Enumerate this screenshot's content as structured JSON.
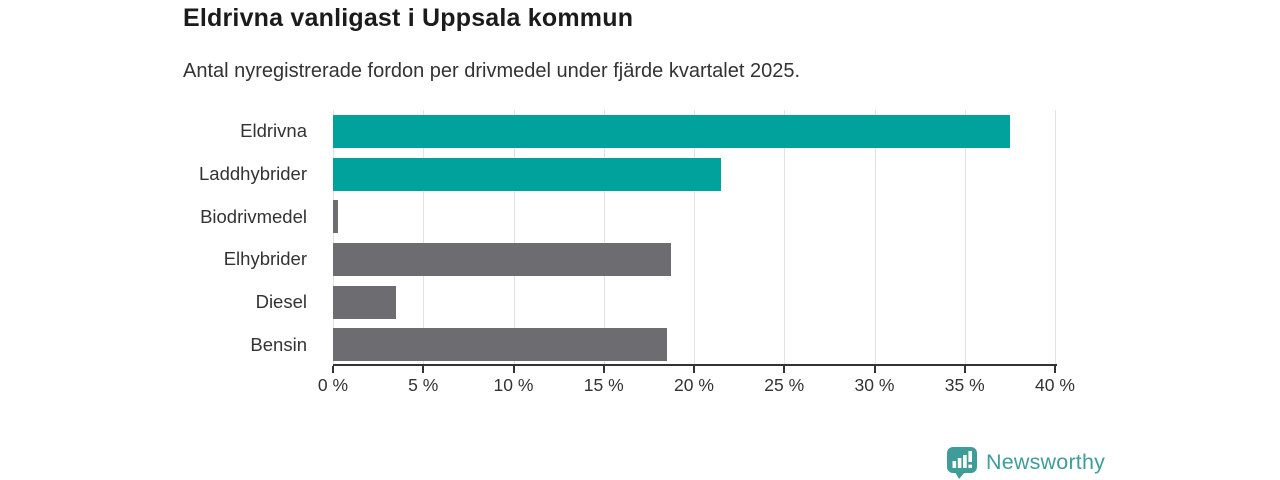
{
  "title": "Eldrivna vanligast i Uppsala kommun",
  "subtitle": "Antal nyregistrerade fordon per drivmedel under fjärde kvartalet 2025.",
  "chart_data": {
    "type": "bar",
    "orientation": "horizontal",
    "title": "Eldrivna vanligast i Uppsala kommun",
    "subtitle": "Antal nyregistrerade fordon per drivmedel under fjärde kvartalet 2025.",
    "categories": [
      "Eldrivna",
      "Laddhybrider",
      "Biodrivmedel",
      "Elhybrider",
      "Diesel",
      "Bensin"
    ],
    "values": [
      37.5,
      21.5,
      0.3,
      18.7,
      3.5,
      18.5
    ],
    "unit": "%",
    "bar_colors": [
      "#00a29b",
      "#00a29b",
      "#6d6d71",
      "#6d6d71",
      "#6d6d71",
      "#6d6d71"
    ],
    "highlight_color": "#00a29b",
    "default_color": "#6d6d71",
    "xlim": [
      0,
      40
    ],
    "xticks": [
      0,
      5,
      10,
      15,
      20,
      25,
      30,
      35,
      40
    ],
    "xtick_suffix": " %",
    "grid": true,
    "grid_color": "#e2e2e2",
    "legend": false
  },
  "branding": {
    "logo_text": "Newsworthy",
    "logo_color": "#3f9d99",
    "logo_icon": "newsworthy-speech-bubble-bar-chart-icon"
  }
}
